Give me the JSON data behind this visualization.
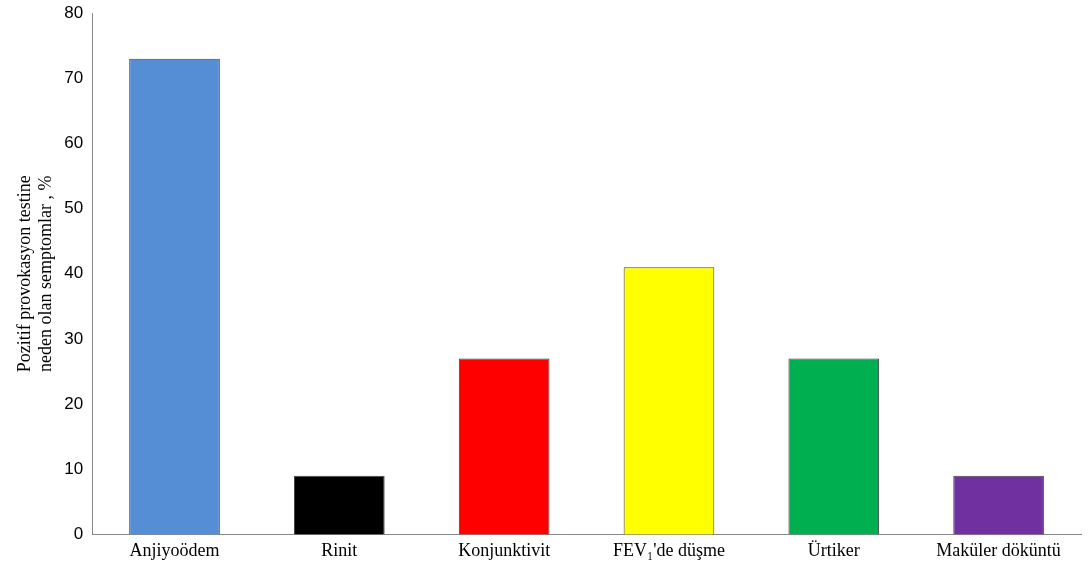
{
  "chart_data": {
    "type": "bar",
    "ylabel": "Pozitif provokasyon testine neden olan semptomlar , %",
    "categories": [
      "Anjiyoödem",
      "Rinit",
      "Konjunktivit",
      "FEV₁'de düşme",
      "Ürtiker",
      "Maküler döküntü"
    ],
    "values": [
      73,
      9,
      27,
      41,
      27,
      9
    ],
    "colors": [
      "#558ed5",
      "#000000",
      "#ff0000",
      "#ffff00",
      "#00b050",
      "#7030a0"
    ],
    "ylim": [
      0,
      80
    ],
    "yticks": [
      0,
      10,
      20,
      30,
      40,
      50,
      60,
      70,
      80
    ],
    "grid": false,
    "legend": false
  }
}
